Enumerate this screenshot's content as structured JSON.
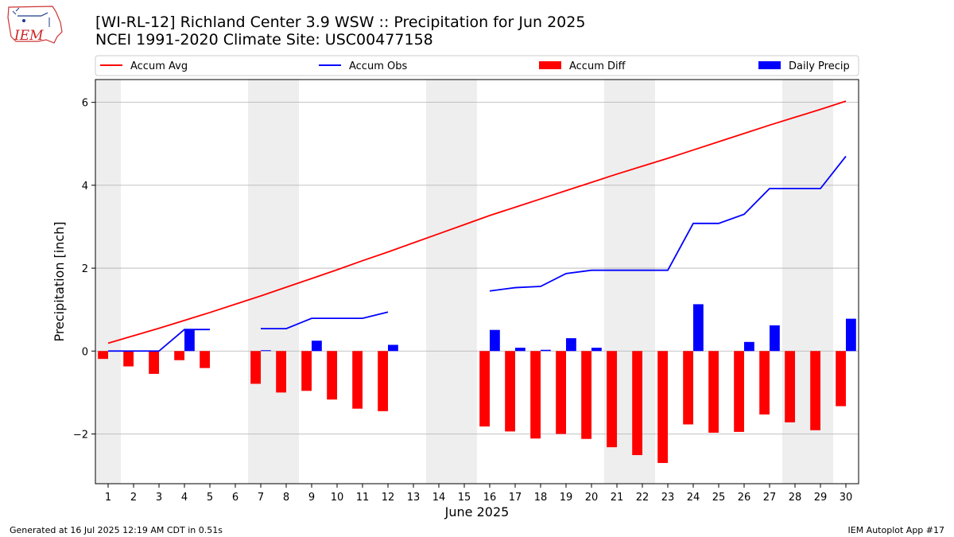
{
  "header": {
    "title_line1": "[WI-RL-12] Richland Center 3.9 WSW :: Precipitation for Jun 2025",
    "title_line2": "NCEI 1991-2020 Climate Site: USC00477158",
    "logo_text": "IEM"
  },
  "footer": {
    "generated": "Generated at 16 Jul 2025 12:19 AM CDT in 0.51s",
    "app": "IEM Autoplot App #17"
  },
  "colors": {
    "accum_avg": "#ff0000",
    "accum_obs": "#0000ff",
    "accum_diff": "#ff0000",
    "daily_precip": "#0000ff",
    "weekend_shade": "#eeeeee",
    "grid": "#b0b0b0"
  },
  "chart_data": {
    "type": "bar",
    "xlabel": "June 2025",
    "ylabel": "Precipitation [inch]",
    "ylim": [
      -3.2,
      6.55
    ],
    "yticks": [
      -2,
      0,
      2,
      4,
      6
    ],
    "xlim": [
      0.5,
      30.5
    ],
    "grid": "y",
    "legend_placement": "top",
    "legend": [
      "Accum Avg",
      "Accum Obs",
      "Accum Diff",
      "Daily Precip"
    ],
    "weekend_shading": [
      [
        0.5,
        1.5
      ],
      [
        6.5,
        8.5
      ],
      [
        13.5,
        15.5
      ],
      [
        20.5,
        22.5
      ],
      [
        27.5,
        29.5
      ]
    ],
    "x": [
      1,
      2,
      3,
      4,
      5,
      6,
      7,
      8,
      9,
      10,
      11,
      12,
      13,
      14,
      15,
      16,
      17,
      18,
      19,
      20,
      21,
      22,
      23,
      24,
      25,
      26,
      27,
      28,
      29,
      30
    ],
    "series": [
      {
        "name": "Accum Avg",
        "kind": "line",
        "values": [
          0.19,
          0.37,
          0.55,
          0.74,
          0.93,
          1.13,
          1.33,
          1.54,
          1.75,
          1.96,
          2.18,
          2.39,
          2.61,
          2.83,
          3.05,
          3.27,
          3.47,
          3.67,
          3.87,
          4.07,
          4.27,
          4.46,
          4.65,
          4.85,
          5.05,
          5.25,
          5.45,
          5.64,
          5.83,
          6.03
        ]
      },
      {
        "name": "Accum Obs",
        "kind": "line",
        "values": [
          0.0,
          0.0,
          0.0,
          0.52,
          0.52,
          null,
          0.54,
          0.54,
          0.79,
          0.79,
          0.79,
          0.94,
          null,
          null,
          null,
          1.45,
          1.53,
          1.56,
          1.87,
          1.95,
          1.95,
          1.95,
          1.95,
          3.08,
          3.08,
          3.3,
          3.92,
          3.92,
          3.92,
          4.7
        ]
      },
      {
        "name": "Accum Diff",
        "kind": "bar",
        "values": [
          -0.19,
          -0.37,
          -0.55,
          -0.22,
          -0.41,
          null,
          -0.79,
          -1.0,
          -0.96,
          -1.17,
          -1.39,
          -1.45,
          null,
          null,
          null,
          -1.82,
          -1.94,
          -2.11,
          -2.0,
          -2.12,
          -2.32,
          -2.51,
          -2.7,
          -1.77,
          -1.97,
          -1.95,
          -1.53,
          -1.72,
          -1.91,
          -1.33
        ]
      },
      {
        "name": "Daily Precip",
        "kind": "bar",
        "values": [
          0.0,
          0.0,
          0.0,
          0.52,
          0.0,
          null,
          0.02,
          0.0,
          0.25,
          0.0,
          0.0,
          0.15,
          null,
          null,
          null,
          0.51,
          0.08,
          0.03,
          0.31,
          0.08,
          0.0,
          0.0,
          0.0,
          1.13,
          0.0,
          0.22,
          0.62,
          0.0,
          0.0,
          0.78
        ]
      }
    ]
  }
}
